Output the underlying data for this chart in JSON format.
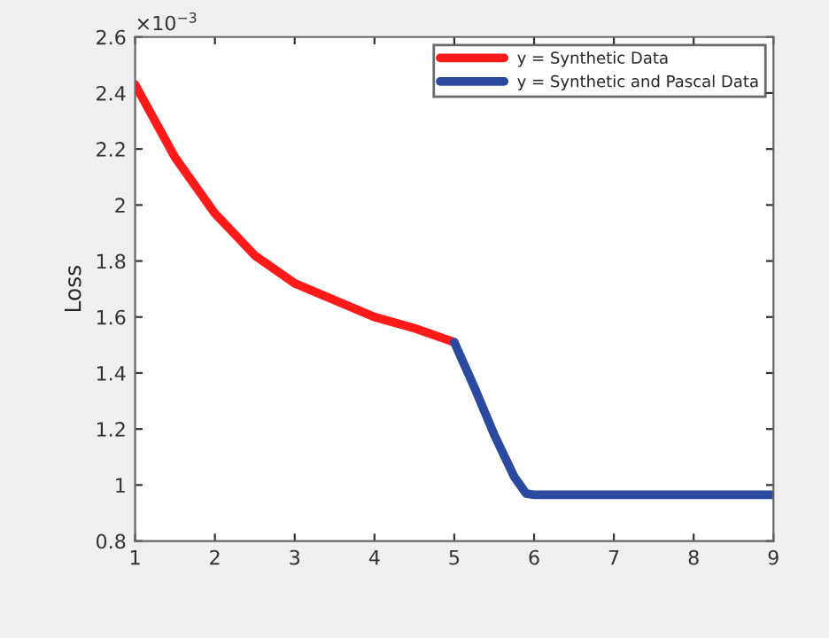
{
  "chart_data": {
    "type": "line",
    "ylabel": "Loss",
    "annotations": [
      "×10$^{−3}$"
    ],
    "xlim": [
      1,
      9
    ],
    "xticks": [
      1,
      2,
      3,
      4,
      5,
      6,
      7,
      8,
      9
    ],
    "ylim": [
      0.8,
      2.6
    ],
    "yticks": [
      0.8,
      1,
      1.2,
      1.4,
      1.6,
      1.8,
      2,
      2.2,
      2.4,
      2.6
    ],
    "grid": false,
    "legend": "top right",
    "series": [
      {
        "name": "y = Synthetic Data",
        "color": "#ff1a1a",
        "x": [
          1,
          1.5,
          2,
          2.5,
          3,
          3.5,
          4,
          4.5,
          5
        ],
        "values": [
          2.43,
          2.17,
          1.97,
          1.82,
          1.72,
          1.66,
          1.6,
          1.56,
          1.51
        ]
      },
      {
        "name": "y = Synthetic and Pascal Data",
        "color": "#2a4aa0",
        "x": [
          5,
          5.25,
          5.5,
          5.75,
          5.9,
          6,
          7,
          8,
          9
        ],
        "values": [
          1.51,
          1.35,
          1.18,
          1.03,
          0.97,
          0.965,
          0.965,
          0.965,
          0.965
        ]
      }
    ]
  }
}
